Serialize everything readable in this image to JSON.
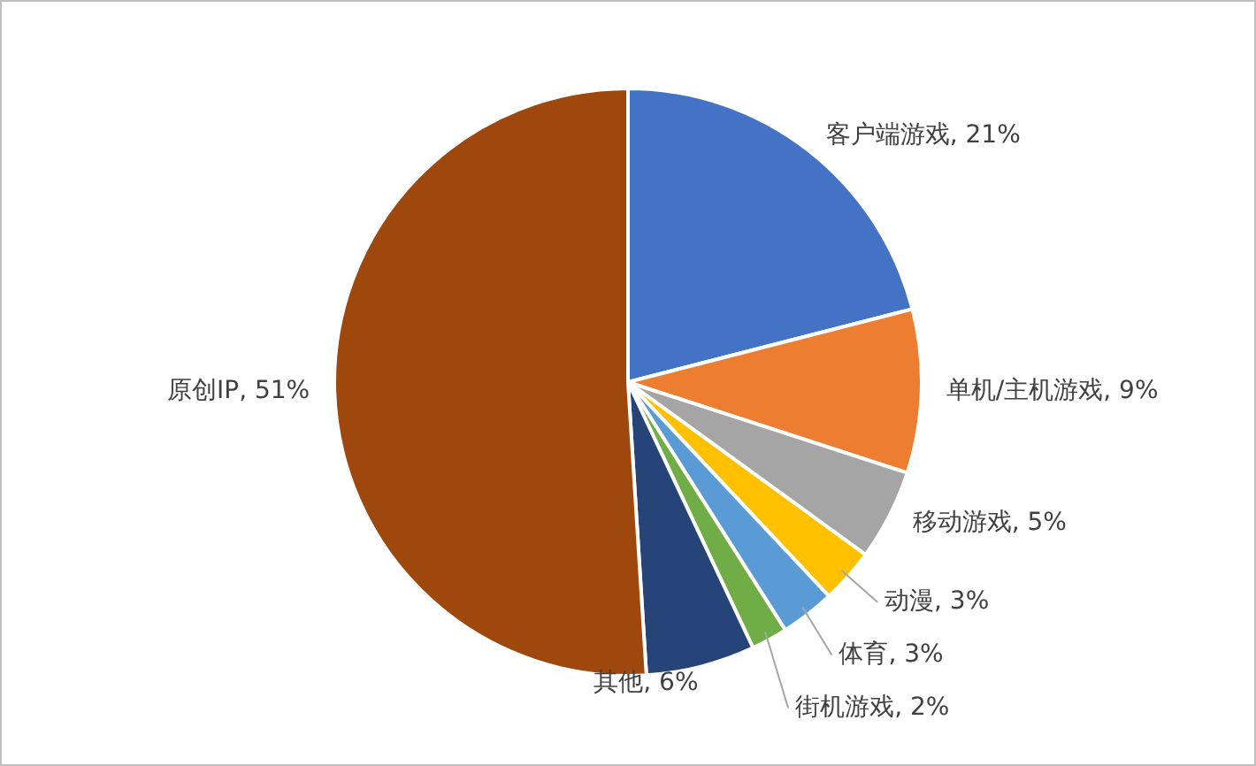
{
  "chart_data": {
    "type": "pie",
    "categories": [
      "客户端游戏",
      "单机/主机游戏",
      "移动游戏",
      "动漫",
      "体育",
      "街机游戏",
      "其他",
      "原创IP"
    ],
    "values": [
      21,
      9,
      5,
      3,
      3,
      2,
      6,
      51
    ],
    "value_labels": [
      "21%",
      "9%",
      "5%",
      "3%",
      "3%",
      "2%",
      "6%",
      "51%"
    ],
    "colors": [
      "#4472c4",
      "#ed7d31",
      "#a5a5a5",
      "#ffc000",
      "#5b9bd5",
      "#70ad47",
      "#264478",
      "#9e480e"
    ],
    "legend": false
  }
}
